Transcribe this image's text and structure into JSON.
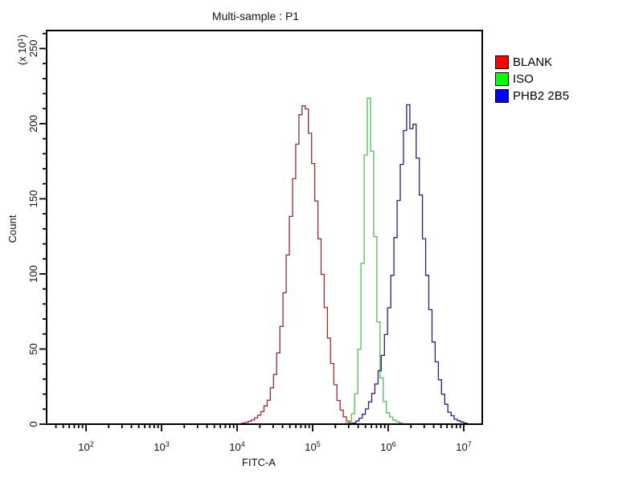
{
  "window": {
    "background": "#ffffff"
  },
  "chart_data": {
    "type": "line",
    "subtype": "flow-cytometry-histogram-overlay",
    "title": "Multi-sample : P1",
    "xlabel": "FITC-A",
    "ylabel": "Count",
    "y_axis_multiplier": {
      "prefix": "(x 10",
      "exponent": "1",
      "suffix": ")"
    },
    "x_scale": "log10",
    "xlim_log10": [
      1.479,
      7.245
    ],
    "ylim": [
      0,
      262
    ],
    "y_major_ticks": [
      0,
      50,
      100,
      150,
      200,
      250
    ],
    "y_minor_step": 10,
    "x_major_tick_exponents": [
      2,
      3,
      4,
      5,
      6,
      7
    ],
    "grid": false,
    "legend_position": "outside-top-right",
    "axis_color": "#000000",
    "series": [
      {
        "name": "BLANK",
        "stroke": "#9b2b2b",
        "peak_log10x": 4.88,
        "peak_count": 216,
        "points": [
          [
            4.02,
            0
          ],
          [
            4.12,
            1
          ],
          [
            4.22,
            3
          ],
          [
            4.32,
            7
          ],
          [
            4.42,
            16
          ],
          [
            4.5,
            32
          ],
          [
            4.57,
            56
          ],
          [
            4.63,
            88
          ],
          [
            4.69,
            124
          ],
          [
            4.74,
            155
          ],
          [
            4.79,
            183
          ],
          [
            4.83,
            202
          ],
          [
            4.855,
            213
          ],
          [
            4.87,
            207
          ],
          [
            4.89,
            216
          ],
          [
            4.92,
            211
          ],
          [
            4.96,
            196
          ],
          [
            5.01,
            172
          ],
          [
            5.06,
            142
          ],
          [
            5.11,
            112
          ],
          [
            5.17,
            80
          ],
          [
            5.23,
            51
          ],
          [
            5.29,
            29
          ],
          [
            5.35,
            14
          ],
          [
            5.41,
            6
          ],
          [
            5.47,
            2
          ],
          [
            5.53,
            0
          ]
        ]
      },
      {
        "name": "ISO",
        "stroke": "#52bd57",
        "peak_log10x": 5.745,
        "peak_count": 217,
        "points": [
          [
            5.43,
            0
          ],
          [
            5.5,
            2
          ],
          [
            5.55,
            9
          ],
          [
            5.6,
            30
          ],
          [
            5.64,
            72
          ],
          [
            5.67,
            122
          ],
          [
            5.695,
            168
          ],
          [
            5.715,
            196
          ],
          [
            5.73,
            210
          ],
          [
            5.745,
            217
          ],
          [
            5.77,
            203
          ],
          [
            5.79,
            178
          ],
          [
            5.82,
            138
          ],
          [
            5.85,
            94
          ],
          [
            5.88,
            57
          ],
          [
            5.91,
            32
          ],
          [
            5.95,
            16
          ],
          [
            6.0,
            7
          ],
          [
            6.07,
            3
          ],
          [
            6.15,
            1
          ],
          [
            6.22,
            0
          ]
        ]
      },
      {
        "name": "PHB2 2B5",
        "stroke": "#22227a",
        "peak_log10x": 6.28,
        "peak_count": 215,
        "points": [
          [
            5.53,
            0
          ],
          [
            5.62,
            3
          ],
          [
            5.7,
            8
          ],
          [
            5.78,
            17
          ],
          [
            5.86,
            29
          ],
          [
            5.93,
            46
          ],
          [
            5.99,
            66
          ],
          [
            6.05,
            96
          ],
          [
            6.11,
            132
          ],
          [
            6.17,
            167
          ],
          [
            6.22,
            194
          ],
          [
            6.255,
            211
          ],
          [
            6.28,
            215
          ],
          [
            6.305,
            196
          ],
          [
            6.335,
            207
          ],
          [
            6.375,
            186
          ],
          [
            6.425,
            158
          ],
          [
            6.48,
            120
          ],
          [
            6.54,
            86
          ],
          [
            6.6,
            55
          ],
          [
            6.67,
            33
          ],
          [
            6.74,
            17
          ],
          [
            6.81,
            8
          ],
          [
            6.9,
            3
          ],
          [
            7.0,
            1
          ],
          [
            7.07,
            0
          ]
        ]
      }
    ]
  },
  "legend": {
    "items": [
      {
        "label": "BLANK",
        "swatch_color": "#ff0000"
      },
      {
        "label": "ISO",
        "swatch_color": "#00ff00"
      },
      {
        "label": "PHB2 2B5",
        "swatch_color": "#0000ff"
      }
    ]
  }
}
